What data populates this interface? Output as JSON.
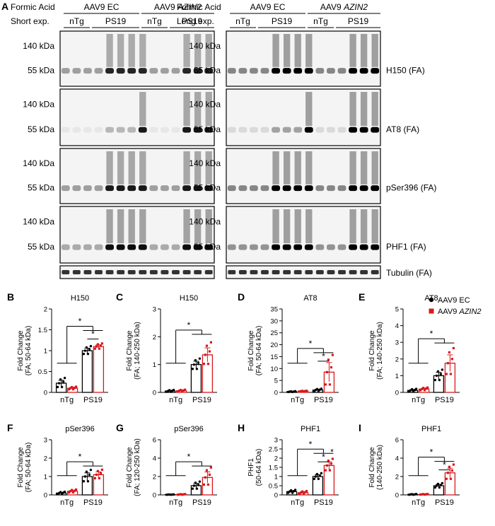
{
  "figure": {
    "panel_letters": [
      "A",
      "B",
      "C",
      "D",
      "E",
      "F",
      "G",
      "H",
      "I"
    ],
    "blot": {
      "left": {
        "reagent": "Formic Acid",
        "exposure": "Short exp.",
        "groups": [
          "AAV9 EC",
          "AAV9 "
        ],
        "group_italic": [
          "",
          "AZIN2"
        ],
        "subgroups": [
          "nTg",
          "PS19",
          "nTg",
          "PS19"
        ]
      },
      "right": {
        "reagent": "Formic Acid",
        "exposure": "Long exp.",
        "groups": [
          "AAV9 EC",
          "AAV9 "
        ],
        "group_italic": [
          "",
          "AZIN2"
        ],
        "subgroups": [
          "nTg",
          "PS19",
          "nTg",
          "PS19"
        ]
      },
      "mw_labels": {
        "high": "140 kDa",
        "low": "55 kDa"
      },
      "blot_names": [
        "H150 (FA)",
        "AT8 (FA)",
        "pSer396 (FA)",
        "PHF1 (FA)",
        "Tubulin (FA)"
      ]
    },
    "legend": {
      "entries": [
        {
          "label": "AAV9 EC",
          "italic": "",
          "color": "#000000",
          "marker": "circle"
        },
        {
          "label": "AAV9 ",
          "italic": "AZIN2",
          "color": "#d7191c",
          "marker": "square"
        }
      ]
    }
  },
  "chart_data": [
    {
      "panel": "B",
      "type": "bar",
      "title": "H150",
      "ylabel": "Fold Change (FA; 50-64 kDa)",
      "categories": [
        "nTg",
        "PS19"
      ],
      "series": [
        {
          "name": "AAV9 EC",
          "values": [
            0.22,
            1.0
          ],
          "errors": [
            0.07,
            0.06
          ]
        },
        {
          "name": "AAV9 AZIN2",
          "values": [
            0.1,
            1.1
          ],
          "errors": [
            0.02,
            0.04
          ]
        }
      ],
      "yticks": [
        0,
        0.5,
        1.0,
        1.5,
        2.0
      ],
      "ylim": [
        0,
        2.0
      ],
      "annotations": [
        "*",
        "*"
      ]
    },
    {
      "panel": "C",
      "type": "bar",
      "title": "H150",
      "ylabel": "Fold Change (FA; 140-250 kDa)",
      "categories": [
        "nTg",
        "PS19"
      ],
      "series": [
        {
          "name": "AAV9 EC",
          "values": [
            0.05,
            1.0
          ],
          "errors": [
            0.02,
            0.12
          ]
        },
        {
          "name": "AAV9 AZIN2",
          "values": [
            0.06,
            1.35
          ],
          "errors": [
            0.02,
            0.25
          ]
        }
      ],
      "yticks": [
        0,
        1,
        2,
        3
      ],
      "ylim": [
        0,
        3
      ],
      "annotations": [
        "*"
      ]
    },
    {
      "panel": "D",
      "type": "bar",
      "title": "AT8",
      "ylabel": "Fold Change (FA; 50-64 kDa)",
      "categories": [
        "nTg",
        "PS19"
      ],
      "series": [
        {
          "name": "AAV9 EC",
          "values": [
            0.3,
            1.0
          ],
          "errors": [
            0.1,
            0.3
          ]
        },
        {
          "name": "AAV9 AZIN2",
          "values": [
            0.5,
            8.5
          ],
          "errors": [
            0.1,
            4
          ]
        }
      ],
      "yticks": [
        0,
        5,
        10,
        15,
        20,
        25,
        30,
        35
      ],
      "ylim": [
        0,
        35
      ],
      "annotations": [
        "*",
        "*"
      ]
    },
    {
      "panel": "E",
      "type": "bar",
      "title": "AT8",
      "ylabel": "Fold Change (FA; 140-250 kDa)",
      "categories": [
        "nTg",
        "PS19"
      ],
      "series": [
        {
          "name": "AAV9 EC",
          "values": [
            0.12,
            1.0
          ],
          "errors": [
            0.05,
            0.2
          ]
        },
        {
          "name": "AAV9 AZIN2",
          "values": [
            0.2,
            1.75
          ],
          "errors": [
            0.05,
            0.5
          ]
        }
      ],
      "yticks": [
        0,
        1,
        2,
        3,
        4,
        5
      ],
      "ylim": [
        0,
        5
      ],
      "annotations": [
        "*"
      ]
    },
    {
      "panel": "F",
      "type": "bar",
      "title": "pSer396",
      "ylabel": "Fold Change (FA; 50-64 kDa)",
      "categories": [
        "nTg",
        "PS19"
      ],
      "series": [
        {
          "name": "AAV9 EC",
          "values": [
            0.1,
            1.0
          ],
          "errors": [
            0.04,
            0.2
          ]
        },
        {
          "name": "AAV9 AZIN2",
          "values": [
            0.2,
            1.1
          ],
          "errors": [
            0.05,
            0.15
          ]
        }
      ],
      "yticks": [
        0,
        1,
        2,
        3
      ],
      "ylim": [
        0,
        3
      ],
      "annotations": [
        "*"
      ]
    },
    {
      "panel": "G",
      "type": "bar",
      "title": "pSer396",
      "ylabel": "Fold Change (FA; 120-250 kDa)",
      "categories": [
        "nTg",
        "PS19"
      ],
      "series": [
        {
          "name": "AAV9 EC",
          "values": [
            0.03,
            1.0
          ],
          "errors": [
            0.01,
            0.25
          ]
        },
        {
          "name": "AAV9 AZIN2",
          "values": [
            0.05,
            1.9
          ],
          "errors": [
            0.02,
            0.6
          ]
        }
      ],
      "yticks": [
        0,
        2,
        4,
        6
      ],
      "ylim": [
        0,
        6
      ],
      "annotations": [
        "*"
      ]
    },
    {
      "panel": "H",
      "type": "bar",
      "title": "PHF1",
      "ylabel": "PHF1 (50-64 kDa)",
      "categories": [
        "nTg",
        "PS19"
      ],
      "series": [
        {
          "name": "AAV9 EC",
          "values": [
            0.18,
            1.0
          ],
          "errors": [
            0.05,
            0.1
          ]
        },
        {
          "name": "AAV9 AZIN2",
          "values": [
            0.12,
            1.6
          ],
          "errors": [
            0.05,
            0.2
          ]
        }
      ],
      "yticks": [
        0,
        0.5,
        1.0,
        1.5,
        2.0,
        2.5,
        3.0
      ],
      "ylim": [
        0,
        3.0
      ],
      "annotations": [
        "*",
        "*",
        "*"
      ]
    },
    {
      "panel": "I",
      "type": "bar",
      "title": "PHF1",
      "ylabel": "Fold Change (140-250 kDa)",
      "categories": [
        "nTg",
        "PS19"
      ],
      "series": [
        {
          "name": "AAV9 EC",
          "values": [
            0.05,
            1.0
          ],
          "errors": [
            0.02,
            0.15
          ]
        },
        {
          "name": "AAV9 AZIN2",
          "values": [
            0.06,
            2.4
          ],
          "errors": [
            0.02,
            0.5
          ]
        }
      ],
      "yticks": [
        0,
        2,
        4,
        6
      ],
      "ylim": [
        0,
        6
      ],
      "annotations": [
        "*",
        "*"
      ]
    }
  ]
}
